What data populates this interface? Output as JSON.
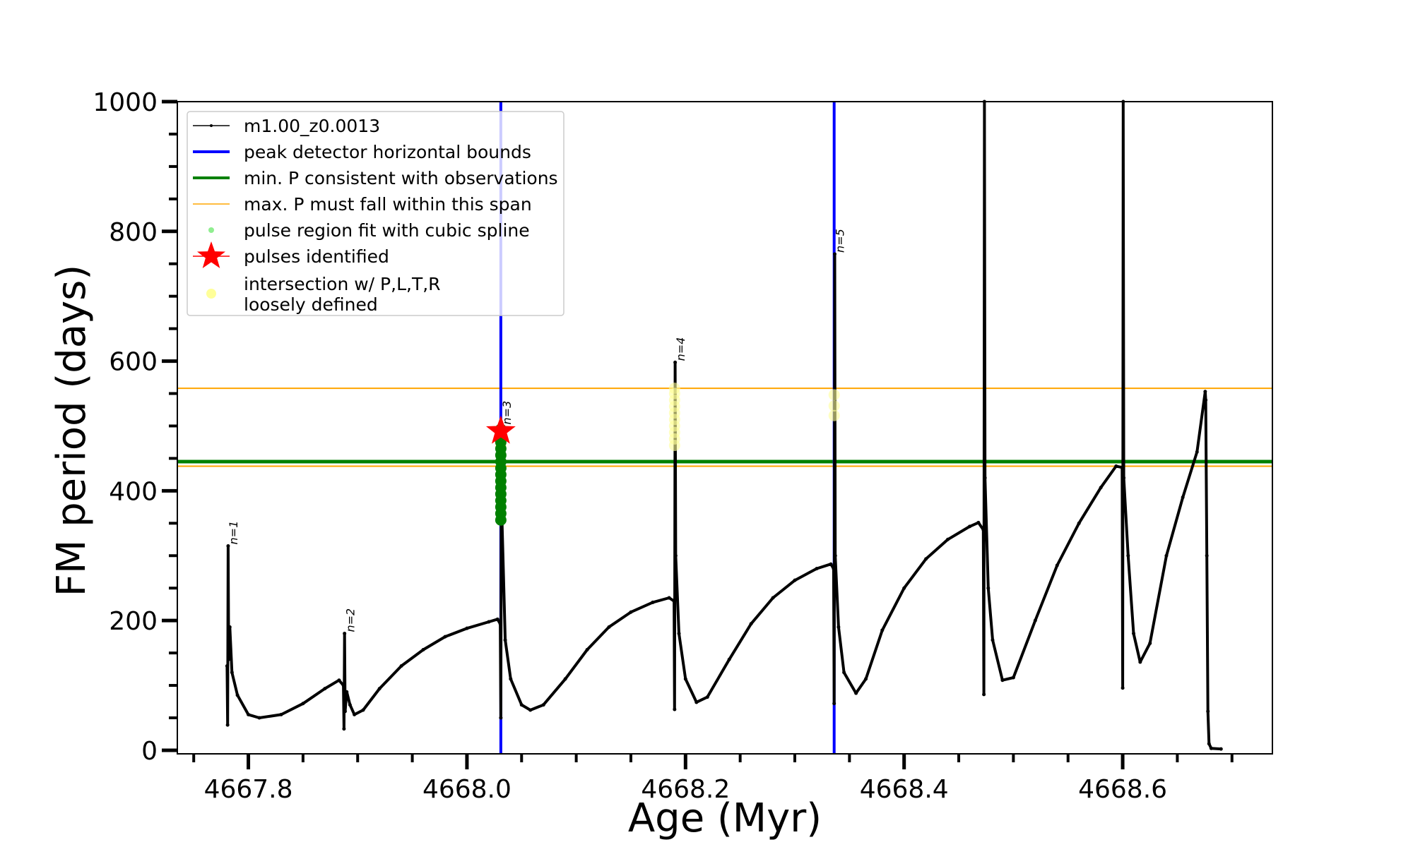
{
  "chart_data": {
    "type": "line",
    "title": "",
    "xlabel": "Age (Myr)",
    "ylabel": "FM period (days)",
    "xlim": [
      4667.735,
      4668.737
    ],
    "ylim": [
      -5.5,
      1000
    ],
    "x_major_ticks": [
      4667.8,
      4668.0,
      4668.2,
      4668.4,
      4668.6
    ],
    "x_tick_labels": [
      "4667.8",
      "4668.0",
      "4668.2",
      "4668.4",
      "4668.6"
    ],
    "x_minor_step": 0.05,
    "y_major_ticks": [
      0,
      200,
      400,
      600,
      800,
      1000
    ],
    "y_tick_labels": [
      "0",
      "200",
      "400",
      "600",
      "800",
      "1000"
    ],
    "y_minor_step": 50,
    "grid": false,
    "legend_position": "top-left",
    "legend": [
      {
        "label": "m1.00_z0.0013",
        "kind": "line-marker",
        "color": "#000000"
      },
      {
        "label": "peak detector horizontal bounds",
        "kind": "line-thick",
        "color": "#0000ff"
      },
      {
        "label": "min. P consistent with observations",
        "kind": "line-thick",
        "color": "#008000"
      },
      {
        "label": "max. P must fall within this span",
        "kind": "line-thin",
        "color": "#ffa500"
      },
      {
        "label": "pulse region fit with cubic spline",
        "kind": "dot",
        "color": "#90ee90"
      },
      {
        "label": "pulses identified",
        "kind": "star",
        "color": "#ff0000"
      },
      {
        "label": "intersection w/ P,L,T,R",
        "label2": "loosely defined",
        "kind": "big-dot",
        "color": "#ffff99"
      }
    ],
    "series": [
      {
        "name": "m1.00_z0.0013",
        "color": "#000000",
        "x": [
          4667.7805,
          4667.781,
          4667.7815,
          4667.782,
          4667.783,
          4667.785,
          4667.79,
          4667.8,
          4667.81,
          4667.83,
          4667.85,
          4667.87,
          4667.883,
          4667.887,
          4667.8875,
          4667.888,
          4667.8885,
          4667.89,
          4667.893,
          4667.897,
          4667.905,
          4667.92,
          4667.94,
          4667.96,
          4667.98,
          4668.0,
          4668.02,
          4668.028,
          4668.0305,
          4668.031,
          4668.0315,
          4668.032,
          4668.035,
          4668.04,
          4668.05,
          4668.058,
          4668.07,
          4668.09,
          4668.11,
          4668.13,
          4668.15,
          4668.17,
          4668.185,
          4668.1895,
          4668.19,
          4668.1905,
          4668.191,
          4668.194,
          4668.2,
          4668.21,
          4668.22,
          4668.24,
          4668.26,
          4668.28,
          4668.3,
          4668.32,
          4668.333,
          4668.3355,
          4668.336,
          4668.3365,
          4668.337,
          4668.34,
          4668.345,
          4668.356,
          4668.365,
          4668.38,
          4668.4,
          4668.42,
          4668.44,
          4668.46,
          4668.468,
          4668.4725,
          4668.473,
          4668.4735,
          4668.474,
          4668.477,
          4668.481,
          4668.49,
          4668.5,
          4668.52,
          4668.54,
          4668.56,
          4668.58,
          4668.594,
          4668.5995,
          4668.6,
          4668.6005,
          4668.601,
          4668.605,
          4668.61,
          4668.616,
          4668.625,
          4668.64,
          4668.655,
          4668.668,
          4668.6755,
          4668.676,
          4668.677,
          4668.678,
          4668.679,
          4668.681,
          4668.69
        ],
        "y": [
          130,
          39,
          315,
          140,
          190,
          120,
          85,
          55,
          50,
          55,
          72,
          95,
          108,
          100,
          33,
          180,
          60,
          90,
          70,
          55,
          62,
          95,
          130,
          155,
          175,
          188,
          198,
          202,
          195,
          50,
          500,
          360,
          170,
          110,
          70,
          62,
          70,
          110,
          155,
          190,
          213,
          228,
          235,
          230,
          63,
          598,
          300,
          180,
          110,
          74,
          82,
          140,
          195,
          235,
          262,
          280,
          287,
          280,
          72,
          765,
          300,
          190,
          120,
          88,
          110,
          185,
          250,
          295,
          325,
          345,
          351,
          340,
          86,
          1000,
          420,
          250,
          170,
          108,
          112,
          200,
          285,
          350,
          405,
          438,
          436,
          96,
          1000,
          420,
          300,
          180,
          136,
          165,
          300,
          390,
          460,
          553,
          540,
          300,
          60,
          10,
          3,
          2
        ]
      }
    ],
    "vertical_lines": [
      {
        "name": "peak detector horizontal bounds",
        "x": 4668.031,
        "color": "#0000ff"
      },
      {
        "name": "peak detector horizontal bounds",
        "x": 4668.336,
        "color": "#0000ff"
      }
    ],
    "horizontal_lines": [
      {
        "name": "min. P consistent with observations",
        "y": 445,
        "color": "#008000"
      },
      {
        "name": "max. P must fall within this span (upper)",
        "y": 558,
        "color": "#ffa500"
      },
      {
        "name": "max. P must fall within this span (lower)",
        "y": 438,
        "color": "#ffa500"
      }
    ],
    "pulse_region_fit": {
      "x": 4668.031,
      "y": [
        355,
        365,
        375,
        385,
        395,
        405,
        415,
        425,
        435,
        445,
        455,
        465,
        475,
        485,
        495
      ],
      "color": "#008000"
    },
    "pulses_identified": [
      {
        "x": 4668.031,
        "y": 492
      }
    ],
    "intersections_loosely_defined": [
      {
        "x": 4668.031,
        "y": 480
      },
      {
        "x": 4668.031,
        "y": 470
      },
      {
        "x": 4668.19,
        "y": 470
      },
      {
        "x": 4668.19,
        "y": 480
      },
      {
        "x": 4668.19,
        "y": 490
      },
      {
        "x": 4668.19,
        "y": 500
      },
      {
        "x": 4668.19,
        "y": 510
      },
      {
        "x": 4668.19,
        "y": 520
      },
      {
        "x": 4668.19,
        "y": 530
      },
      {
        "x": 4668.19,
        "y": 540
      },
      {
        "x": 4668.19,
        "y": 550
      },
      {
        "x": 4668.19,
        "y": 558
      },
      {
        "x": 4668.336,
        "y": 548
      },
      {
        "x": 4668.336,
        "y": 531
      },
      {
        "x": 4668.336,
        "y": 516
      }
    ],
    "annotations": [
      {
        "text": "n=1",
        "x": 4667.781,
        "y": 315
      },
      {
        "text": "n=2",
        "x": 4667.888,
        "y": 180
      },
      {
        "text": "n=3",
        "x": 4668.031,
        "y": 500
      },
      {
        "text": "n=4",
        "x": 4668.19,
        "y": 598
      },
      {
        "text": "n=5",
        "x": 4668.336,
        "y": 765
      }
    ]
  }
}
